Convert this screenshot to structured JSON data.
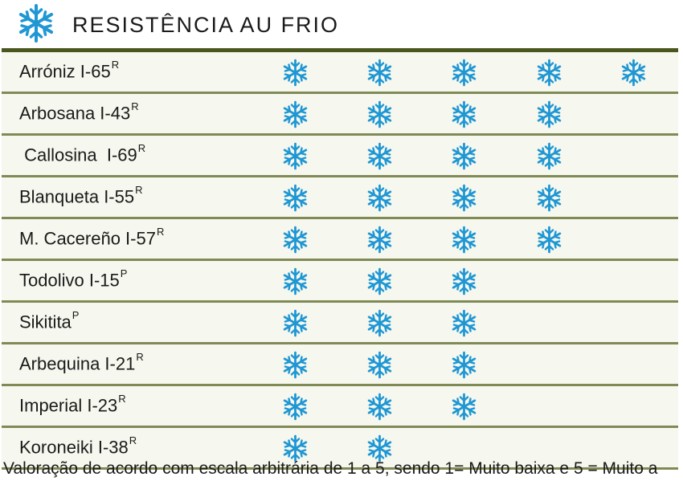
{
  "header": {
    "title": "RESISTÊNCIA AU FRIO",
    "icon": "snowflake-icon"
  },
  "colors": {
    "snowflake": "#1e97d4",
    "row_background": "#f6f7ee",
    "row_divider": "#7f8a55",
    "top_bar": "#49571f"
  },
  "rating_scale_max": 5,
  "varieties": [
    {
      "name": "Arróniz I-65",
      "sup": "R",
      "rating": 5
    },
    {
      "name": "Arbosana I-43",
      "sup": "R",
      "rating": 4
    },
    {
      "name": " Callosina  I-69",
      "sup": "R",
      "rating": 4
    },
    {
      "name": "Blanqueta I-55",
      "sup": "R",
      "rating": 4
    },
    {
      "name": "M. Cacereño I-57",
      "sup": "R",
      "rating": 4
    },
    {
      "name": "Todolivo I-15",
      "sup": "P",
      "rating": 3
    },
    {
      "name": "Sikitita",
      "sup": "P",
      "rating": 3
    },
    {
      "name": "Arbequina I-21",
      "sup": "R",
      "rating": 3
    },
    {
      "name": "Imperial I-23",
      "sup": "R",
      "rating": 3
    },
    {
      "name": "Koroneiki I-38",
      "sup": "R",
      "rating": 2
    }
  ],
  "footer": {
    "note": "Valoração de acordo com escala arbitrária de 1 a 5, sendo 1= Muito baixa e 5 = Muito a"
  }
}
